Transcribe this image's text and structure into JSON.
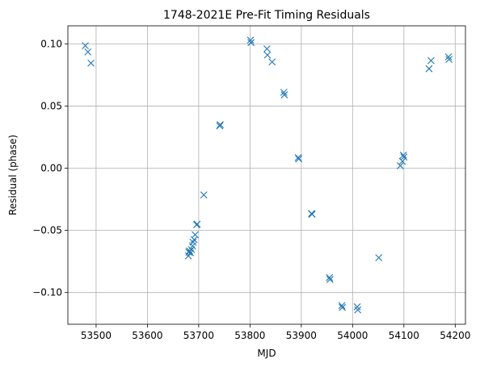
{
  "chart_data": {
    "type": "scatter",
    "title": "1748-2021E Pre-Fit Timing Residuals",
    "xlabel": "MJD",
    "ylabel": "Residual (phase)",
    "xlim": [
      53445,
      54220
    ],
    "ylim": [
      -0.1255,
      0.1145
    ],
    "xticks": [
      53500,
      53600,
      53700,
      53800,
      53900,
      54000,
      54100,
      54200
    ],
    "yticks": [
      -0.1,
      -0.05,
      0.0,
      0.05,
      0.1
    ],
    "xtick_labels": [
      "53500",
      "53600",
      "53700",
      "53800",
      "53900",
      "54000",
      "54100",
      "54200"
    ],
    "ytick_labels": [
      "−0.10",
      "−0.05",
      "0.00",
      "0.05",
      "0.10"
    ],
    "grid": true,
    "marker": "x",
    "color": "#1f77b4",
    "series": [
      {
        "points": [
          [
            53479,
            0.0985
          ],
          [
            53484,
            0.0935
          ],
          [
            53490,
            0.0845
          ],
          [
            53680,
            -0.0705
          ],
          [
            53681,
            -0.0675
          ],
          [
            53682,
            -0.0665
          ],
          [
            53684,
            -0.068
          ],
          [
            53686,
            -0.0655
          ],
          [
            53688,
            -0.0625
          ],
          [
            53689,
            -0.0595
          ],
          [
            53691,
            -0.0575
          ],
          [
            53693,
            -0.0535
          ],
          [
            53696,
            -0.0455
          ],
          [
            53697,
            -0.045
          ],
          [
            53710,
            -0.0215
          ],
          [
            53741,
            0.034
          ],
          [
            53742,
            0.035
          ],
          [
            53801,
            0.103
          ],
          [
            53802,
            0.101
          ],
          [
            53833,
            0.096
          ],
          [
            53834,
            0.091
          ],
          [
            53843,
            0.0855
          ],
          [
            53866,
            0.061
          ],
          [
            53867,
            0.059
          ],
          [
            53894,
            0.0085
          ],
          [
            53895,
            0.0075
          ],
          [
            53920,
            -0.0365
          ],
          [
            53921,
            -0.037
          ],
          [
            53955,
            -0.088
          ],
          [
            53956,
            -0.0895
          ],
          [
            53979,
            -0.1105
          ],
          [
            53980,
            -0.112
          ],
          [
            54009,
            -0.1115
          ],
          [
            54010,
            -0.114
          ],
          [
            54051,
            -0.072
          ],
          [
            54093,
            0.002
          ],
          [
            54097,
            0.0055
          ],
          [
            54099,
            0.0105
          ],
          [
            54100,
            0.009
          ],
          [
            54149,
            0.08
          ],
          [
            54153,
            0.0865
          ],
          [
            54187,
            0.0895
          ],
          [
            54188,
            0.0875
          ]
        ]
      }
    ]
  }
}
